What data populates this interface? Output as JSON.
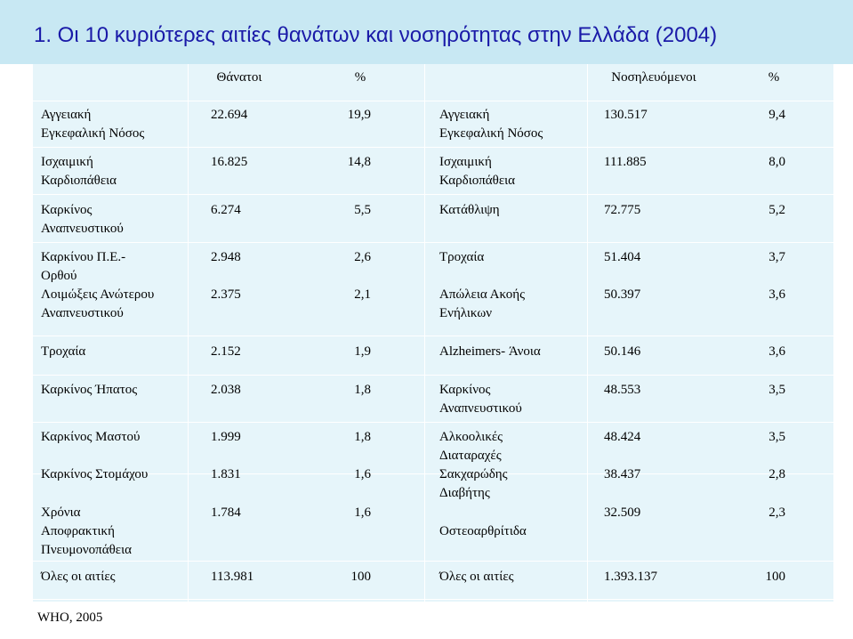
{
  "title": "1. Οι 10 κυριότερες αιτίες θανάτων και νοσηρότητας στην Ελλάδα (2004)",
  "headers": {
    "deaths": "Θάνατοι",
    "deaths_pct": "%",
    "hospitalized": "Νοσηλευόμενοι",
    "hospitalized_pct": "%"
  },
  "rows": [
    {
      "death_cause": "Αγγειακή\nΕγκεφαλική Νόσος",
      "deaths": "22.694",
      "deaths_pct": "19,9",
      "hosp_cause": "Αγγειακή\nΕγκεφαλική Νόσος",
      "hosp": "130.517",
      "hosp_pct": "9,4"
    },
    {
      "death_cause": "Ισχαιμική\nΚαρδιοπάθεια",
      "deaths": "16.825",
      "deaths_pct": "14,8",
      "hosp_cause": "Ισχαιμική\nΚαρδιοπάθεια",
      "hosp": "111.885",
      "hosp_pct": "8,0"
    },
    {
      "death_cause": "Καρκίνος\nΑναπνευστικού",
      "deaths": "6.274",
      "deaths_pct": "5,5",
      "hosp_cause": "Κατάθλιψη",
      "hosp": "72.775",
      "hosp_pct": "5,2"
    },
    {
      "death_cause": "Καρκίνου Π.Ε.-\nΟρθού",
      "deaths": "2.948",
      "deaths_pct": "2,6",
      "hosp_cause": "Τροχαία",
      "hosp": "51.404",
      "hosp_pct": "3,7"
    },
    {
      "death_cause": "Λοιμώξεις Ανώτερου\nΑναπνευστικού",
      "deaths": "2.375",
      "deaths_pct": "2,1",
      "hosp_cause": "Απώλεια Ακοής\nΕνήλικων",
      "hosp": "50.397",
      "hosp_pct": "3,6"
    },
    {
      "death_cause": "Τροχαία",
      "deaths": "2.152",
      "deaths_pct": "1,9",
      "hosp_cause": "Alzheimers- Άνοια",
      "hosp": "50.146",
      "hosp_pct": "3,6"
    },
    {
      "death_cause": "Καρκίνος Ήπατος",
      "deaths": "2.038",
      "deaths_pct": "1,8",
      "hosp_cause": "Καρκίνος\nΑναπνευστικού",
      "hosp": "48.553",
      "hosp_pct": "3,5"
    },
    {
      "death_cause": "Καρκίνος Μαστού",
      "deaths": "1.999",
      "deaths_pct": "1,8",
      "hosp_cause": "Αλκοολικές\nΔιαταραχές",
      "hosp": "48.424",
      "hosp_pct": "3,5"
    },
    {
      "death_cause": "Καρκίνος Στομάχου",
      "deaths": "1.831",
      "deaths_pct": "1,6",
      "hosp_cause": "Σακχαρώδης\nΔιαβήτης",
      "hosp": "38.437",
      "hosp_pct": "2,8"
    },
    {
      "death_cause": "Χρόνια\nΑποφρακτική\nΠνευμονοπάθεια",
      "deaths": "1.784",
      "deaths_pct": "1,6",
      "hosp_cause": "\nΟστεοαρθρίτιδα",
      "hosp": "32.509",
      "hosp_pct": "2,3"
    },
    {
      "death_cause": "Όλες οι αιτίες",
      "deaths": "113.981",
      "deaths_pct": "100",
      "hosp_cause": "Όλες οι αιτίες",
      "hosp": "1.393.137",
      "hosp_pct": "100"
    }
  ],
  "source": "WHO, 2005"
}
